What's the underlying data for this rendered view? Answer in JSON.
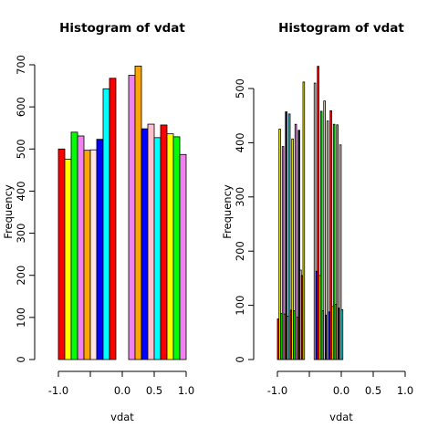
{
  "chart_data": [
    {
      "type": "bar",
      "title": "Histogram of vdat",
      "xlabel": "vdat",
      "ylabel": "Frequency",
      "xlim": [
        -1.0,
        1.0
      ],
      "ylim": [
        0,
        700
      ],
      "x_ticks": [
        -1.0,
        -0.5,
        0.0,
        0.5,
        1.0
      ],
      "x_tick_labels": [
        "-1.0",
        "",
        "0.0",
        "0.5",
        "1.0"
      ],
      "y_ticks": [
        0,
        100,
        200,
        300,
        400,
        500,
        600,
        700
      ],
      "y_tick_labels": [
        "0",
        "100",
        "200",
        "300",
        "400",
        "500",
        "600",
        "700"
      ],
      "bin_start": -1.0,
      "bin_width": 0.1,
      "values": [
        500,
        476,
        540,
        531,
        497,
        498,
        523,
        643,
        668,
        0,
        0,
        675,
        697,
        548,
        559,
        527,
        557,
        536,
        529,
        487
      ],
      "colors": [
        "#ff0000",
        "#ffff00",
        "#00ff00",
        "#ee82ee",
        "#ffa500",
        "#ffe4e1",
        "#0000ff",
        "#00ffff",
        "#ff0000",
        "#ffff00",
        "#00ff00",
        "#ee82ee",
        "#ffa500",
        "#0000ff",
        "#ffc0cb",
        "#00ffff",
        "#ff0000",
        "#ffff00",
        "#00ff00",
        "#ee82ee"
      ]
    },
    {
      "type": "bar",
      "title": "Histogram of vdat",
      "xlabel": "vdat",
      "ylabel": "Frequency",
      "xlim": [
        -1.0,
        1.0
      ],
      "ylim": [
        0,
        540
      ],
      "x_ticks": [
        -1.0,
        -0.5,
        0.0,
        0.5,
        1.0
      ],
      "x_tick_labels": [
        "-1.0",
        "",
        "0.0",
        "0.5",
        "1.0"
      ],
      "y_ticks": [
        0,
        100,
        200,
        300,
        400,
        500
      ],
      "y_tick_labels": [
        "0",
        "100",
        "200",
        "300",
        "400",
        "500"
      ],
      "bin_start": -1.0,
      "bin_width": 0.025,
      "values": [
        75,
        425,
        85,
        393,
        84,
        457,
        80,
        453,
        91,
        407,
        90,
        434,
        78,
        423,
        165,
        155,
        512,
        0,
        0,
        0,
        0,
        0,
        0,
        510,
        163,
        541,
        155,
        458,
        90,
        477,
        82,
        440,
        88,
        459,
        98,
        434,
        102,
        433,
        95,
        396,
        92
      ],
      "colors": [
        "#ff0000",
        "#ffff00",
        "#00ff00",
        "#ee82ee",
        "#ffa500",
        "#0000ff",
        "#ffc0cb",
        "#00ffff",
        "#ff0000",
        "#ffff00",
        "#00ff00",
        "#ee82ee",
        "#ffa500",
        "#0000ff",
        "#ffc0cb",
        "#ff0000",
        "#ffff00",
        "#00ff00",
        "#ee82ee",
        "#ffa500",
        "#0000ff",
        "#ffc0cb",
        "#00ffff",
        "#ffe4e1",
        "#0000ff",
        "#ff0000",
        "#ffff00",
        "#00ff00",
        "#ee82ee",
        "#ffff00",
        "#0000ff",
        "#ffe4e1",
        "#0000ff",
        "#ff0000",
        "#ffff00",
        "#00ff00",
        "#ffa500",
        "#ffa500",
        "#0000ff",
        "#ffe4e1",
        "#00ffff"
      ]
    }
  ]
}
